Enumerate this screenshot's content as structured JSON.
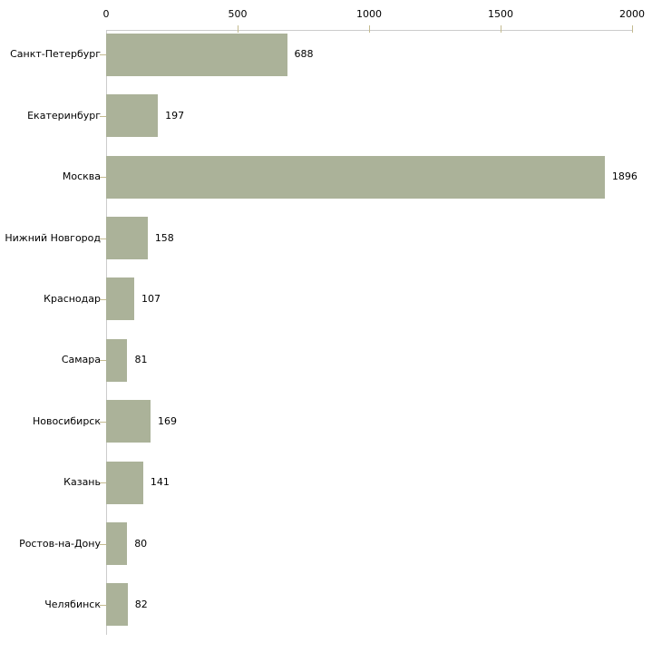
{
  "chart_data": {
    "type": "bar",
    "orientation": "horizontal",
    "title": "",
    "categories": [
      "Санкт-Петербург",
      "Екатеринбург",
      "Москва",
      "Нижний Новгород",
      "Краснодар",
      "Самара",
      "Новосибирск",
      "Казань",
      "Ростов-на-Дону",
      "Челябинск"
    ],
    "values": [
      688,
      197,
      1896,
      158,
      107,
      81,
      169,
      141,
      80,
      82
    ],
    "value_labels": [
      "688",
      "197",
      "1896",
      "158",
      "107",
      "81",
      "169",
      "141",
      "80",
      "82"
    ],
    "xlim": [
      0,
      2000
    ],
    "x_ticks": [
      0,
      500,
      1000,
      1500,
      2000
    ],
    "x_tick_labels": [
      "0",
      "500",
      "1000",
      "1500",
      "2000"
    ],
    "xlabel": "",
    "ylabel": "",
    "grid": false,
    "legend": null,
    "axis_position": "top",
    "colors": {
      "bar_fill": "#abb299",
      "axis_line": "#cccccc",
      "tick_mark": "#c4bb90",
      "text": "#000000",
      "background": "#ffffff"
    }
  }
}
